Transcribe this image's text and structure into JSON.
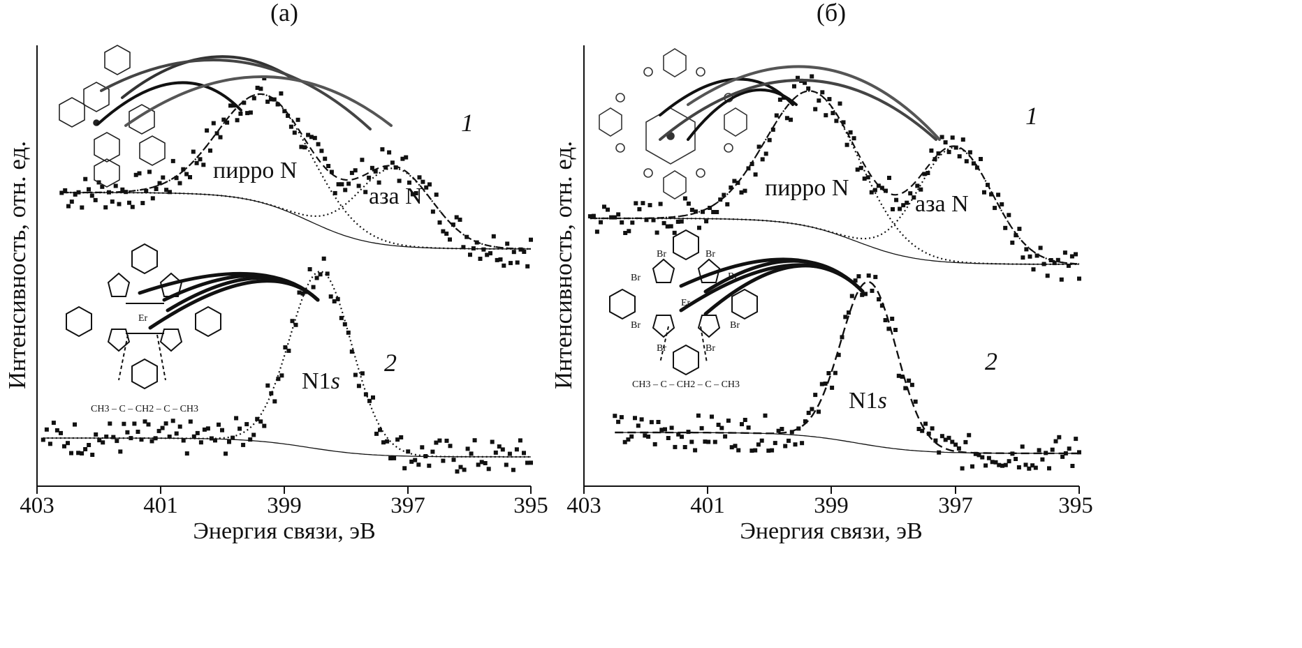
{
  "chart_data": [
    {
      "type": "scatter",
      "panel_label": "(а)",
      "xlabel": "Энергия связи, эВ",
      "ylabel": "Интенсивность, отн. ед.",
      "xlim": [
        403,
        395
      ],
      "x_ticks": [
        "403",
        "401",
        "399",
        "397",
        "395"
      ],
      "curve_labels": [
        "1",
        "2"
      ],
      "annotations": [
        "пирро N",
        "аза N",
        "N1s"
      ],
      "molecule_label": "CH3 – C – CH2 – C – CH3",
      "metal_label": "Er",
      "series": [
        {
          "name": "1",
          "peaks": [
            {
              "label": "пирро N",
              "center": 399.3,
              "height": 0.52,
              "width": 0.75
            },
            {
              "label": "аза N",
              "center": 397.2,
              "height": 0.37,
              "width": 0.6
            }
          ],
          "baseline_left": 0.0,
          "baseline_right": -0.27
        },
        {
          "name": "2",
          "peaks": [
            {
              "label": "N1s",
              "center": 398.4,
              "height": 0.85,
              "width": 0.5
            }
          ],
          "baseline_left": 0.0,
          "baseline_right": -0.09
        }
      ]
    },
    {
      "type": "scatter",
      "panel_label": "(б)",
      "xlabel": "Энергия связи, эВ",
      "ylabel": "Интенсивность, отн. ед.",
      "xlim": [
        403,
        395
      ],
      "x_ticks": [
        "403",
        "401",
        "399",
        "397",
        "395"
      ],
      "curve_labels": [
        "1",
        "2"
      ],
      "annotations": [
        "пирро N",
        "аза N",
        "N1s"
      ],
      "molecule_label": "CH3 – C – CH2 – C – CH3",
      "metal_label": "Er",
      "substituent_label": "Br",
      "series": [
        {
          "name": "1",
          "peaks": [
            {
              "label": "пирро N",
              "center": 399.3,
              "height": 0.65,
              "width": 0.75
            },
            {
              "label": "аза N",
              "center": 397.0,
              "height": 0.55,
              "width": 0.6
            }
          ],
          "baseline_left": 0.0,
          "baseline_right": -0.22
        },
        {
          "name": "2",
          "peaks": [
            {
              "label": "N1s",
              "center": 398.4,
              "height": 0.78,
              "width": 0.45
            }
          ],
          "baseline_left": 0.0,
          "baseline_right": -0.1
        }
      ]
    }
  ]
}
